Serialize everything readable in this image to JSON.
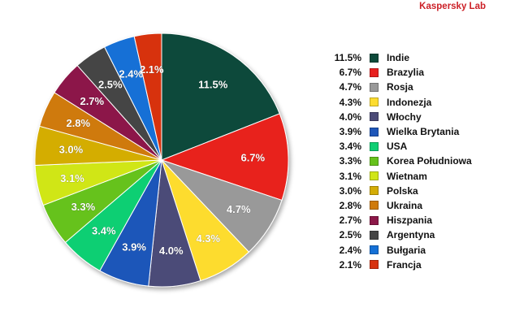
{
  "brand": "Kaspersky Lab",
  "chart_data": {
    "type": "pie",
    "title": "",
    "legend_position": "right",
    "slices": [
      {
        "label": "Indie",
        "value": 11.5,
        "display": "11.5%",
        "color": "#0d4a3a"
      },
      {
        "label": "Brazylia",
        "value": 6.7,
        "display": "6.7%",
        "color": "#e8201f"
      },
      {
        "label": "Rosja",
        "value": 4.7,
        "display": "4.7%",
        "color": "#999999"
      },
      {
        "label": "Indonezja",
        "value": 4.3,
        "display": "4.3%",
        "color": "#fddc2f"
      },
      {
        "label": "Włochy",
        "value": 4.0,
        "display": "4.0%",
        "color": "#4c4b78"
      },
      {
        "label": "Wielka Brytania",
        "value": 3.9,
        "display": "3.9%",
        "color": "#1e56b9"
      },
      {
        "label": "USA",
        "value": 3.4,
        "display": "3.4%",
        "color": "#0fcf73"
      },
      {
        "label": "Korea Południowa",
        "value": 3.3,
        "display": "3.3%",
        "color": "#66c21b"
      },
      {
        "label": "Wietnam",
        "value": 3.1,
        "display": "3.1%",
        "color": "#d0e617"
      },
      {
        "label": "Polska",
        "value": 3.0,
        "display": "3.0%",
        "color": "#d4ad06"
      },
      {
        "label": "Ukraina",
        "value": 2.8,
        "display": "2.8%",
        "color": "#cf7a0b"
      },
      {
        "label": "Hiszpania",
        "value": 2.7,
        "display": "2.7%",
        "color": "#8c1848"
      },
      {
        "label": "Argentyna",
        "value": 2.5,
        "display": "2.5%",
        "color": "#444444"
      },
      {
        "label": "Bułgaria",
        "value": 2.4,
        "display": "2.4%",
        "color": "#1570d6"
      },
      {
        "label": "Francja",
        "value": 2.1,
        "display": "2.1%",
        "color": "#d7320f"
      }
    ]
  }
}
